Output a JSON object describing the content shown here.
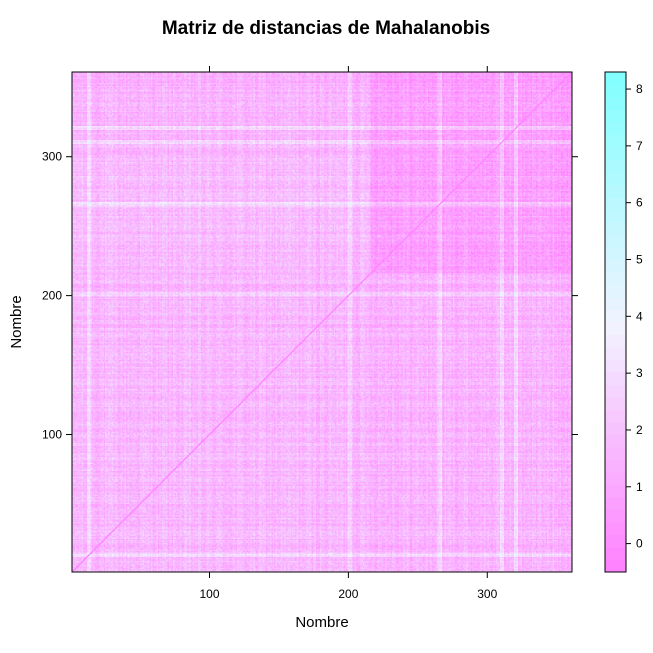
{
  "chart_data": {
    "type": "heatmap",
    "title": "Matriz de distancias de Mahalanobis",
    "xlabel": "Nombre",
    "ylabel": "Nombre",
    "n": 361,
    "xlim": [
      1,
      361
    ],
    "ylim": [
      1,
      361
    ],
    "x_ticks": [
      "100",
      "200",
      "300"
    ],
    "y_ticks": [
      "100",
      "200",
      "300"
    ],
    "x_tick_values": [
      100,
      200,
      300
    ],
    "y_tick_values": [
      100,
      200,
      300
    ],
    "colorkey": {
      "range": [
        -0.5,
        8.3
      ],
      "ticks": [
        "0",
        "1",
        "2",
        "3",
        "4",
        "5",
        "6",
        "7",
        "8"
      ],
      "tick_values": [
        0,
        1,
        2,
        3,
        4,
        5,
        6,
        7,
        8
      ],
      "low_color": "#ff80ff",
      "mid_color": "#f2f2ff",
      "high_color": "#80ffff"
    },
    "diagonal_value": 0,
    "typical_off_diagonal_range": [
      1,
      4
    ],
    "high_distance_rows_approx": [
      12,
      200,
      265,
      310,
      320
    ]
  }
}
